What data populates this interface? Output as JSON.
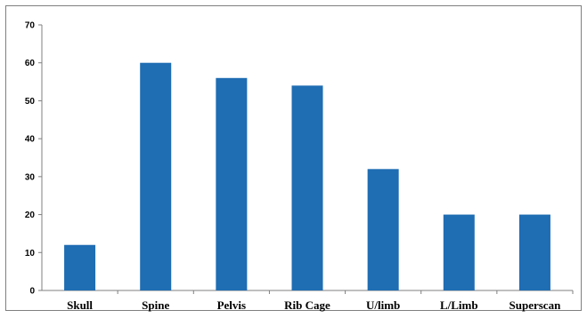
{
  "chart_data": {
    "type": "bar",
    "categories": [
      "Skull",
      "Spine",
      "Pelvis",
      "Rib Cage",
      "U/limb",
      "L/Limb",
      "Superscan"
    ],
    "values": [
      12,
      60,
      56,
      54,
      32,
      20,
      20
    ],
    "ylim": [
      0,
      70
    ],
    "yticks": [
      0,
      10,
      20,
      30,
      40,
      50,
      60,
      70
    ],
    "bar_color": "#1f6db3",
    "grid": false,
    "legend": "none"
  }
}
